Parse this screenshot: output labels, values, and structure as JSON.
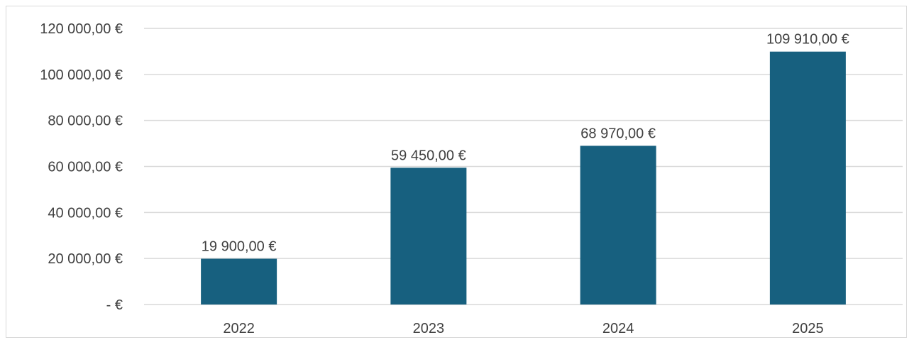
{
  "chart_data": {
    "type": "bar",
    "categories": [
      "2022",
      "2023",
      "2024",
      "2025"
    ],
    "values": [
      19900,
      59450,
      68970,
      109910
    ],
    "data_labels": [
      "19 900,00 €",
      "59 450,00 €",
      "68 970,00 €",
      "109 910,00 €"
    ],
    "title": "",
    "xlabel": "",
    "ylabel": "",
    "ylim": [
      0,
      120000
    ],
    "y_ticks": [
      0,
      20000,
      40000,
      60000,
      80000,
      100000,
      120000
    ],
    "y_tick_labels": [
      "-   €",
      "20 000,00 €",
      "40 000,00 €",
      "60 000,00 €",
      "80 000,00 €",
      "100 000,00 €",
      "120 000,00 €"
    ],
    "grid": true,
    "legend": "none",
    "bar_color": "#17607f"
  }
}
